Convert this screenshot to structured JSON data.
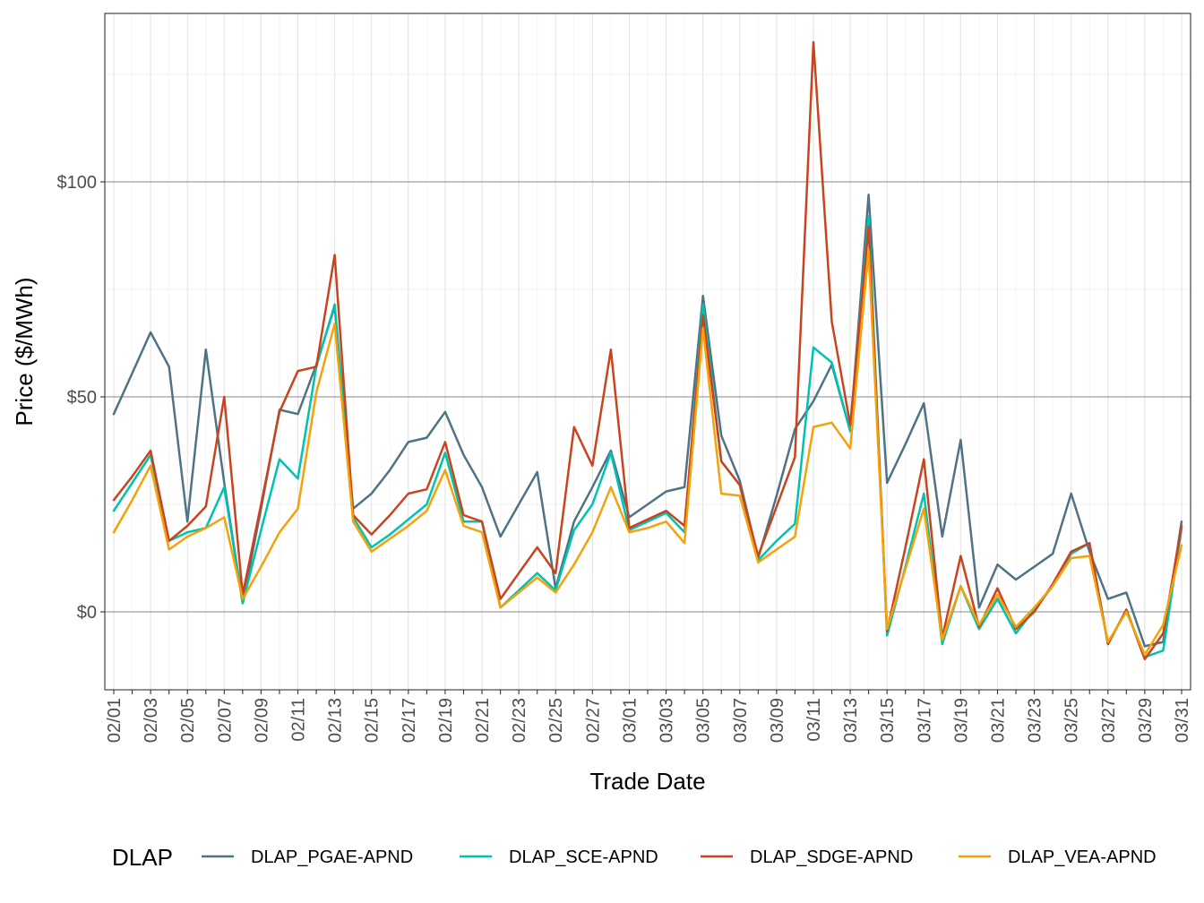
{
  "chart_data": {
    "type": "line",
    "xlabel": "Trade Date",
    "ylabel": "Price ($/MWh)",
    "ylim": [
      -17,
      140
    ],
    "y_ticks": [
      0,
      50,
      100
    ],
    "y_tick_labels": [
      "$0",
      "$50",
      "$100"
    ],
    "grid": true,
    "legend_title": "DLAP",
    "legend_position": "bottom",
    "x": [
      "02/01",
      "02/02",
      "02/03",
      "02/04",
      "02/05",
      "02/06",
      "02/07",
      "02/08",
      "02/09",
      "02/10",
      "02/11",
      "02/12",
      "02/13",
      "02/14",
      "02/15",
      "02/16",
      "02/17",
      "02/18",
      "02/19",
      "02/20",
      "02/21",
      "02/22",
      "02/23",
      "02/24",
      "02/25",
      "02/26",
      "02/27",
      "02/28",
      "03/01",
      "03/02",
      "03/03",
      "03/04",
      "03/05",
      "03/06",
      "03/07",
      "03/08",
      "03/09",
      "03/10",
      "03/11",
      "03/12",
      "03/13",
      "03/14",
      "03/15",
      "03/16",
      "03/17",
      "03/18",
      "03/19",
      "03/20",
      "03/21",
      "03/22",
      "03/23",
      "03/24",
      "03/25",
      "03/26",
      "03/27",
      "03/28",
      "03/29",
      "03/30",
      "03/31"
    ],
    "x_tick_labels": [
      "02/01",
      "02/03",
      "02/05",
      "02/07",
      "02/09",
      "02/11",
      "02/13",
      "02/15",
      "02/17",
      "02/19",
      "02/21",
      "02/23",
      "02/25",
      "02/27",
      "03/01",
      "03/03",
      "03/05",
      "03/07",
      "03/09",
      "03/11",
      "03/13",
      "03/15",
      "03/17",
      "03/19",
      "03/21",
      "03/23",
      "03/25",
      "03/27",
      "03/29",
      "03/31"
    ],
    "series": [
      {
        "name": "DLAP_PGAE-APND",
        "color": "#4f7384",
        "values": [
          46,
          55.5,
          65,
          57,
          21,
          61,
          30,
          2,
          24,
          47,
          46,
          57.5,
          71,
          24,
          27.5,
          33,
          39.5,
          40.5,
          46.5,
          36.5,
          29,
          17.5,
          25,
          32.5,
          5.5,
          21,
          29,
          37.5,
          22,
          25,
          28,
          29,
          73.5,
          41,
          30.5,
          12.5,
          27,
          42.5,
          49,
          57.5,
          42,
          97,
          30,
          39,
          48.5,
          17.5,
          40,
          1,
          11,
          7.5,
          10.5,
          13.5,
          27.5,
          14,
          3,
          4.5,
          -8,
          -7,
          21
        ]
      },
      {
        "name": "DLAP_SCE-APND",
        "color": "#00c2b0",
        "values": [
          23.5,
          30,
          36.5,
          16.5,
          18.5,
          19.5,
          29,
          2,
          19,
          35.5,
          31,
          57,
          71.5,
          22,
          15,
          18,
          21.5,
          25,
          37,
          21,
          21,
          1,
          5,
          9,
          5,
          19,
          25,
          37,
          19,
          21,
          23,
          18.5,
          71.5,
          35,
          29.5,
          12,
          16.5,
          20.5,
          61.5,
          58,
          42,
          92,
          -5.5,
          10.5,
          27.5,
          -7.5,
          6,
          -4,
          3,
          -5,
          0.5,
          6,
          13.5,
          16,
          -7.5,
          0.5,
          -10.5,
          -9,
          19.5
        ]
      },
      {
        "name": "DLAP_SDGE-APND",
        "color": "#c9441e",
        "values": [
          26,
          31.5,
          37.5,
          16.5,
          20,
          24.5,
          50,
          4,
          25,
          46.5,
          56,
          57,
          83,
          22.5,
          18,
          22.5,
          27.5,
          28.5,
          39.5,
          22.5,
          21,
          3,
          9,
          15,
          9,
          43,
          34,
          61,
          19.5,
          21.5,
          23.5,
          20,
          69,
          35,
          29.5,
          13,
          24.5,
          36,
          132.5,
          67.5,
          43.5,
          89.5,
          -4.5,
          15,
          35.5,
          -6,
          13,
          -3.5,
          5.5,
          -4,
          0,
          6.5,
          14,
          16,
          -7.5,
          0.5,
          -11,
          -5,
          20
        ]
      },
      {
        "name": "DLAP_VEA-APND",
        "color": "#f5a10a",
        "values": [
          18.5,
          26,
          34,
          14.5,
          17.5,
          19.5,
          22,
          3,
          10.5,
          18.5,
          24,
          51,
          67,
          21,
          14,
          17,
          20,
          23.5,
          33,
          20,
          18.5,
          1,
          4.5,
          8,
          4.5,
          11,
          18.5,
          29,
          18.5,
          19.5,
          21,
          16,
          66,
          27.5,
          27,
          11.5,
          14.5,
          17.5,
          43,
          44,
          38,
          84,
          -4,
          10,
          24,
          -6.5,
          6,
          -3,
          4,
          -3.5,
          1,
          6,
          12.5,
          13,
          -7,
          0,
          -10,
          -3,
          15.5
        ]
      }
    ]
  }
}
